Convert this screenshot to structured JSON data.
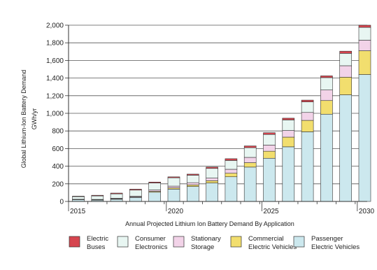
{
  "chart_data": {
    "type": "bar",
    "stacked": true,
    "title": "",
    "ylabel": "Global Lithium-Ion Battery Demand",
    "ylabel_unit": "GWh/yr",
    "xlabel": "Annual Projected Lithium Ion Battery Demand By Application",
    "ylim": [
      0,
      2000
    ],
    "yticks": [
      0,
      200,
      400,
      600,
      800,
      1000,
      1200,
      1400,
      1600,
      1800,
      2000
    ],
    "ytick_labels": [
      "0",
      "200",
      "400",
      "600",
      "800",
      "1,000",
      "1,200",
      "1,400",
      "1,600",
      "1,800",
      "2,000"
    ],
    "xtick_labels": [
      "2015",
      "2020",
      "2025",
      "2030"
    ],
    "xtick_years": [
      2015,
      2020,
      2025,
      2030
    ],
    "categories": [
      2015,
      2016,
      2017,
      2018,
      2019,
      2020,
      2021,
      2022,
      2023,
      2024,
      2025,
      2026,
      2027,
      2028,
      2029,
      2030
    ],
    "grid": "horizontal",
    "legend_position": "bottom",
    "series": [
      {
        "name": "Passenger Electric Vehicles",
        "color": "#cce8ee",
        "values": [
          20,
          15,
          25,
          45,
          105,
          140,
          170,
          210,
          280,
          390,
          490,
          620,
          790,
          990,
          1210,
          1440
        ]
      },
      {
        "name": "Commercial Electric Vehicles",
        "color": "#f2de6e",
        "values": [
          2,
          3,
          4,
          6,
          10,
          14,
          18,
          25,
          40,
          50,
          80,
          110,
          130,
          155,
          200,
          270
        ]
      },
      {
        "name": "Stationary Storage",
        "color": "#f2d3e8",
        "values": [
          3,
          5,
          7,
          8,
          15,
          20,
          25,
          30,
          45,
          60,
          70,
          75,
          90,
          120,
          130,
          120
        ]
      },
      {
        "name": "Consumer Electronics",
        "color": "#e8f6f2",
        "values": [
          30,
          40,
          50,
          70,
          80,
          95,
          85,
          110,
          100,
          110,
          120,
          120,
          120,
          140,
          140,
          145
        ]
      },
      {
        "name": "Electric Buses",
        "color": "#d6454f",
        "values": [
          5,
          7,
          9,
          10,
          10,
          10,
          12,
          15,
          20,
          20,
          20,
          20,
          20,
          20,
          25,
          25
        ]
      }
    ],
    "legend_labels": [
      {
        "series": "Electric Buses",
        "line1": "Electric",
        "line2": "Buses",
        "color": "#d6454f"
      },
      {
        "series": "Consumer Electronics",
        "line1": "Consumer",
        "line2": "Electronics",
        "color": "#e8f6f2"
      },
      {
        "series": "Stationary Storage",
        "line1": "Stationary",
        "line2": "Storage",
        "color": "#f2d3e8"
      },
      {
        "series": "Commercial Electric Vehicles",
        "line1": "Commercial",
        "line2": "Electric Vehicles",
        "color": "#f2de6e"
      },
      {
        "series": "Passenger Electric Vehicles",
        "line1": "Passenger",
        "line2": "Electric Vehicles",
        "color": "#cce8ee"
      }
    ]
  }
}
